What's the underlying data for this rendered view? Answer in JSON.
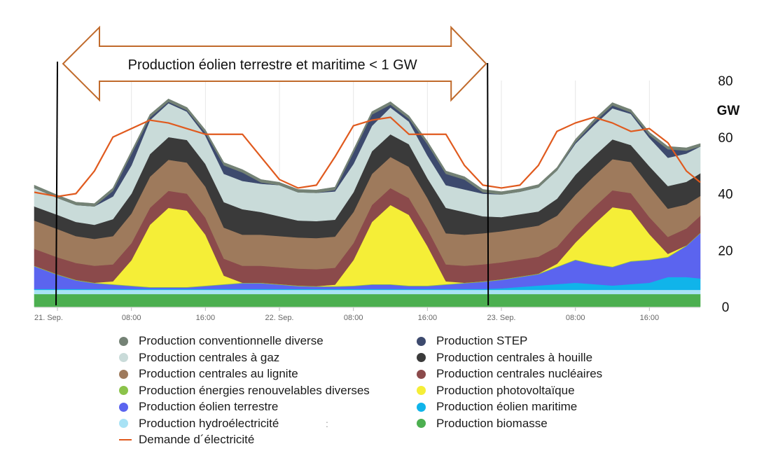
{
  "chart_data": {
    "type": "area",
    "title": "Production éolien terrestre et maritime < 1 GW",
    "ylabel": "GW",
    "ylim": [
      0,
      80
    ],
    "y_ticks": [
      "0",
      "20",
      "40",
      "60",
      "80"
    ],
    "x_ticks": [
      "21. Sep.",
      "08:00",
      "16:00",
      "22. Sep.",
      "08:00",
      "16:00",
      "23. Sep.",
      "08:00",
      "16:00"
    ],
    "x_tick_hours": [
      0,
      8,
      16,
      24,
      32,
      40,
      48,
      56,
      64
    ],
    "x_range_hours": [
      -2.5,
      69.5
    ],
    "annotation_range_hours": [
      0,
      46.5
    ],
    "x": [
      -2.5,
      0,
      2,
      4,
      6,
      8,
      10,
      12,
      14,
      16,
      18,
      20,
      22,
      24,
      26,
      28,
      30,
      32,
      34,
      36,
      38,
      40,
      42,
      44,
      46,
      48,
      50,
      52,
      54,
      56,
      58,
      60,
      62,
      64,
      66,
      68,
      69.5
    ],
    "series": [
      {
        "name": "Production biomasse",
        "color": "#4caf50",
        "values": [
          4.5,
          4.5,
          4.5,
          4.5,
          4.5,
          4.5,
          4.5,
          4.5,
          4.5,
          4.5,
          4.5,
          4.5,
          4.5,
          4.5,
          4.5,
          4.5,
          4.5,
          4.5,
          4.5,
          4.5,
          4.5,
          4.5,
          4.5,
          4.5,
          4.5,
          4.5,
          4.5,
          4.5,
          4.5,
          4.5,
          4.5,
          4.5,
          4.5,
          4.5,
          4.5,
          4.5,
          4.5
        ]
      },
      {
        "name": "Production hydroélectricité",
        "color": "#a8e2f5",
        "values": [
          1.5,
          1.5,
          1.5,
          1.5,
          1.5,
          1.5,
          1.5,
          1.5,
          1.5,
          1.5,
          1.5,
          1.5,
          1.5,
          1.5,
          1.5,
          1.5,
          1.5,
          1.5,
          1.5,
          1.5,
          1.5,
          1.5,
          1.5,
          1.5,
          1.5,
          1.5,
          1.5,
          1.5,
          1.5,
          1.5,
          1.5,
          1.5,
          1.5,
          1.5,
          1.5,
          1.5,
          1.5
        ]
      },
      {
        "name": "Production éolien maritime",
        "color": "#10b4ea",
        "values": [
          0.3,
          0.3,
          0.3,
          0.3,
          0.3,
          0.3,
          0.3,
          0.3,
          0.3,
          0.3,
          0.3,
          0.3,
          0.3,
          0.3,
          0.3,
          0.3,
          0.3,
          0.3,
          0.3,
          0.3,
          0.3,
          0.3,
          0.3,
          0.3,
          0.3,
          0.5,
          1.0,
          1.5,
          2.0,
          2.5,
          2.0,
          1.5,
          2.0,
          2.5,
          4.5,
          4.5,
          4.0
        ]
      },
      {
        "name": "Production éolien terrestre",
        "color": "#5b64ef",
        "values": [
          8.0,
          5.0,
          3.0,
          2.0,
          1.5,
          1.0,
          0.5,
          0.5,
          0.5,
          1.0,
          1.5,
          2.0,
          2.0,
          1.5,
          1.0,
          0.8,
          0.8,
          1.0,
          1.5,
          1.5,
          1.0,
          1.0,
          1.5,
          2.0,
          2.5,
          3.0,
          3.5,
          4.0,
          6.0,
          8.0,
          7.0,
          6.5,
          8.0,
          8.0,
          7.0,
          11.0,
          16.0
        ]
      },
      {
        "name": "Production énergies renouvelables diverses",
        "color": "#8bc34a",
        "values": [
          0.2,
          0.2,
          0.2,
          0.2,
          0.2,
          0.2,
          0.2,
          0.2,
          0.2,
          0.2,
          0.2,
          0.2,
          0.2,
          0.2,
          0.2,
          0.2,
          0.2,
          0.2,
          0.2,
          0.2,
          0.2,
          0.2,
          0.2,
          0.2,
          0.2,
          0.2,
          0.2,
          0.2,
          0.2,
          0.2,
          0.2,
          0.2,
          0.2,
          0.2,
          0.2,
          0.2,
          0.2
        ]
      },
      {
        "name": "Production photovoltaïque",
        "color": "#f5ee37",
        "values": [
          0,
          0,
          0,
          0,
          1.0,
          9.0,
          22.0,
          28.0,
          27.0,
          18.0,
          3.0,
          0,
          0,
          0,
          0,
          0,
          0.5,
          9.0,
          22.0,
          28.0,
          25.0,
          14.0,
          1.0,
          0,
          0,
          0,
          0,
          0,
          1.0,
          6.0,
          14.0,
          21.0,
          18.0,
          9.0,
          1.0,
          0,
          0
        ]
      },
      {
        "name": "Production centrales nucléaires",
        "color": "#8b4a4b",
        "values": [
          6.0,
          6.0,
          6.0,
          6.0,
          6.0,
          6.0,
          6.0,
          6.0,
          6.0,
          6.0,
          6.0,
          6.0,
          6.0,
          6.0,
          6.0,
          6.0,
          6.0,
          6.0,
          6.0,
          6.0,
          6.0,
          6.0,
          6.0,
          6.0,
          6.0,
          6.0,
          6.0,
          6.0,
          6.0,
          6.0,
          6.0,
          6.0,
          6.0,
          6.0,
          6.0,
          6.0,
          6.0
        ]
      },
      {
        "name": "Production centrales au lignite",
        "color": "#9e7a5c",
        "values": [
          10.0,
          10.0,
          9.5,
          9.5,
          10.0,
          10.5,
          11.0,
          11.0,
          11.0,
          11.0,
          11.0,
          11.0,
          11.0,
          11.0,
          11.0,
          11.0,
          11.0,
          11.0,
          11.0,
          11.0,
          11.0,
          11.0,
          11.0,
          11.0,
          11.0,
          11.0,
          11.0,
          11.0,
          11.0,
          11.0,
          11.0,
          11.0,
          11.0,
          11.0,
          10.0,
          8.5,
          7.0
        ]
      },
      {
        "name": "Production centrales à houille",
        "color": "#3a3a3a",
        "values": [
          5.0,
          5.0,
          5.0,
          5.0,
          6.0,
          7.0,
          8.0,
          8.0,
          8.0,
          8.0,
          9.0,
          9.0,
          8.0,
          7.0,
          6.0,
          6.0,
          6.0,
          7.0,
          8.0,
          8.0,
          8.0,
          7.0,
          9.0,
          8.0,
          6.0,
          5.0,
          5.0,
          5.0,
          6.0,
          7.0,
          7.0,
          7.0,
          6.0,
          7.0,
          8.0,
          8.0,
          8.0
        ]
      },
      {
        "name": "Production centrales à gaz",
        "color": "#c9dbd9",
        "values": [
          6.5,
          6.0,
          6.0,
          6.5,
          8.0,
          10.0,
          12.0,
          12.0,
          10.0,
          10.0,
          10.0,
          10.0,
          10.0,
          11.0,
          10.0,
          10.0,
          10.0,
          10.0,
          9.0,
          9.5,
          8.0,
          8.0,
          8.0,
          8.0,
          8.0,
          8.0,
          8.0,
          8.5,
          10.0,
          11.0,
          11.0,
          11.0,
          11.0,
          10.0,
          10.0,
          10.0,
          9.5
        ]
      },
      {
        "name": "Production STEP",
        "color": "#3d4a6e",
        "values": [
          0,
          0,
          0,
          0,
          2.0,
          4.0,
          1.0,
          0.5,
          0.5,
          1.0,
          3.0,
          3.0,
          0.5,
          0,
          0,
          0,
          0.5,
          4.0,
          4.0,
          1.0,
          1.0,
          4.0,
          4.0,
          3.5,
          0.5,
          0,
          0,
          0,
          0,
          0.5,
          1.0,
          1.0,
          0.5,
          1.0,
          3.0,
          1.0,
          0
        ]
      },
      {
        "name": "Production conventionnelle diverse",
        "color": "#748275",
        "values": [
          1.0,
          1.0,
          1.0,
          1.0,
          1.0,
          1.0,
          1.0,
          1.0,
          1.0,
          1.0,
          1.0,
          1.0,
          1.0,
          1.0,
          1.0,
          1.0,
          1.0,
          1.0,
          1.0,
          1.0,
          1.0,
          1.0,
          1.0,
          1.0,
          1.0,
          1.0,
          1.0,
          1.0,
          1.0,
          1.0,
          1.0,
          1.0,
          1.0,
          1.0,
          1.0,
          1.0,
          1.0
        ]
      }
    ],
    "demand": {
      "name": "Demande d´électricité",
      "color": "#e05a1e",
      "values": [
        40.5,
        39.0,
        40.0,
        48.0,
        60.0,
        63.0,
        66.0,
        65.0,
        63.0,
        61.0,
        61.0,
        61.0,
        53.0,
        45.0,
        42.0,
        43.0,
        53.0,
        64.0,
        66.0,
        67.0,
        61.0,
        61.0,
        61.0,
        50.0,
        43.0,
        42.0,
        43.0,
        50.0,
        62.0,
        65.0,
        67.0,
        65.0,
        62.0,
        63.0,
        58.0,
        48.0,
        44.0
      ]
    },
    "legend": {
      "left": [
        {
          "label": "Production conventionnelle diverse",
          "color": "#748275",
          "shape": "dot"
        },
        {
          "label": "Production centrales à gaz",
          "color": "#c9dbd9",
          "shape": "dot"
        },
        {
          "label": "Production centrales au lignite",
          "color": "#9e7a5c",
          "shape": "dot"
        },
        {
          "label": "Production énergies renouvelables diverses",
          "color": "#8bc34a",
          "shape": "dot"
        },
        {
          "label": "Production éolien terrestre",
          "color": "#5b64ef",
          "shape": "dot"
        },
        {
          "label": "Production hydroélectricité",
          "color": "#a8e2f5",
          "shape": "dot"
        },
        {
          "label": "Demande d´électricité",
          "color": "#e05a1e",
          "shape": "line"
        }
      ],
      "right": [
        {
          "label": "Production STEP",
          "color": "#3d4a6e",
          "shape": "dot"
        },
        {
          "label": "Production centrales à houille",
          "color": "#3a3a3a",
          "shape": "dot"
        },
        {
          "label": "Production centrales nucléaires",
          "color": "#8b4a4b",
          "shape": "dot"
        },
        {
          "label": "Production photovoltaïque",
          "color": "#f5ee37",
          "shape": "dot"
        },
        {
          "label": "Production éolien maritime",
          "color": "#10b4ea",
          "shape": "dot"
        },
        {
          "label": "Production biomasse",
          "color": "#4caf50",
          "shape": "dot"
        }
      ]
    },
    "legend_stray_mark": ":"
  }
}
